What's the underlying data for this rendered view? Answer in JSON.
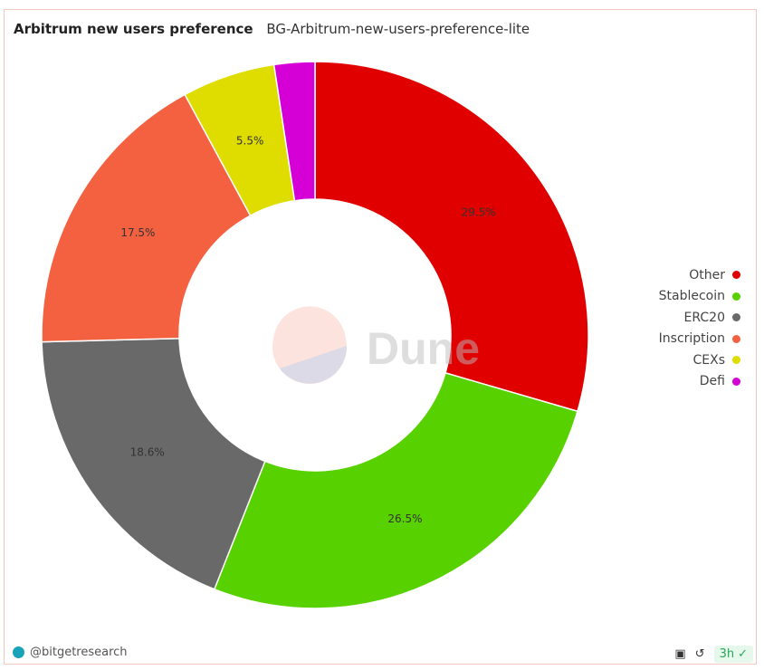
{
  "header": {
    "title": "Arbitrum new users preference",
    "subtitle": "BG-Arbitrum-new-users-preference-lite"
  },
  "chart_data": {
    "type": "pie",
    "donut": true,
    "categories": [
      "Other",
      "Stablecoin",
      "ERC20",
      "Inscription",
      "CEXs",
      "Defi"
    ],
    "values": [
      29.5,
      26.5,
      18.6,
      17.5,
      5.5,
      2.4
    ],
    "labels": [
      "29.5%",
      "26.5%",
      "18.6%",
      "17.5%",
      "5.5%",
      ""
    ],
    "colors": [
      "#e10000",
      "#57d100",
      "#696969",
      "#f46140",
      "#dfdc00",
      "#d500d5"
    ],
    "legend_position": "right"
  },
  "watermark": "Dune",
  "footer": {
    "author": "@bitgetresearch",
    "refresh_age": "3h"
  }
}
